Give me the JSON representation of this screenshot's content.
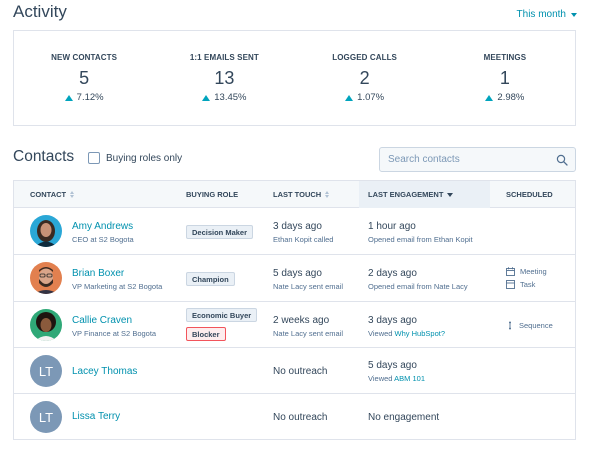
{
  "activity": {
    "title": "Activity",
    "period": "This month",
    "stats": [
      {
        "label": "NEW CONTACTS",
        "value": "5",
        "change": "7.12%"
      },
      {
        "label": "1:1 EMAILS SENT",
        "value": "13",
        "change": "13.45%"
      },
      {
        "label": "LOGGED CALLS",
        "value": "2",
        "change": "1.07%"
      },
      {
        "label": "MEETINGS",
        "value": "1",
        "change": "2.98%"
      }
    ]
  },
  "contacts": {
    "title": "Contacts",
    "buying_roles_only": "Buying roles only",
    "search_placeholder": "Search contacts",
    "columns": {
      "contact": "CONTACT",
      "buying_role": "BUYING ROLE",
      "last_touch": "LAST TOUCH",
      "last_engagement": "LAST ENGAGEMENT",
      "scheduled": "SCHEDULED"
    },
    "rows": [
      {
        "name": "Amy Andrews",
        "subtitle": "CEO at S2 Bogota",
        "initials": "",
        "roles": [
          "Decision Maker"
        ],
        "touch": "3 days ago",
        "touch_sub": "Ethan Kopit called",
        "engagement": "1 hour ago",
        "engagement_sub": "Opened email from Ethan Kopit",
        "engagement_link": "",
        "scheduled": []
      },
      {
        "name": "Brian Boxer",
        "subtitle": "VP Marketing at S2 Bogota",
        "initials": "",
        "roles": [
          "Champion"
        ],
        "touch": "5 days ago",
        "touch_sub": "Nate Lacy sent email",
        "engagement": "2 days ago",
        "engagement_sub": "Opened email from Nate Lacy",
        "engagement_link": "",
        "scheduled": [
          "Meeting",
          "Task"
        ]
      },
      {
        "name": "Callie Craven",
        "subtitle": "VP Finance at S2 Bogota",
        "initials": "",
        "roles": [
          "Economic Buyer",
          "Blocker"
        ],
        "touch": "2 weeks ago",
        "touch_sub": "Nate Lacy sent email",
        "engagement": "3 days ago",
        "engagement_sub": "Viewed ",
        "engagement_link": "Why HubSpot?",
        "scheduled": [
          "Sequence"
        ]
      },
      {
        "name": "Lacey Thomas",
        "subtitle": "",
        "initials": "LT",
        "roles": [],
        "touch": "No outreach",
        "touch_sub": "",
        "engagement": "5 days ago",
        "engagement_sub": "Viewed ",
        "engagement_link": "ABM 101",
        "scheduled": []
      },
      {
        "name": "Lissa Terry",
        "subtitle": "",
        "initials": "LT",
        "roles": [],
        "touch": "No outreach",
        "touch_sub": "",
        "engagement": "No engagement",
        "engagement_sub": "",
        "engagement_link": "",
        "scheduled": []
      }
    ]
  },
  "colors": {
    "link": "#0091ae",
    "text": "#33475b",
    "border": "#dfe3eb",
    "trend_up": "#00a4bd",
    "blocker_border": "#f2545b",
    "avatar_placeholder": "#7c98b6"
  },
  "icons": {
    "trend": "triangle-up-icon",
    "search": "search-icon",
    "meeting": "calendar-icon",
    "task": "task-icon",
    "sequence": "sequence-icon"
  }
}
